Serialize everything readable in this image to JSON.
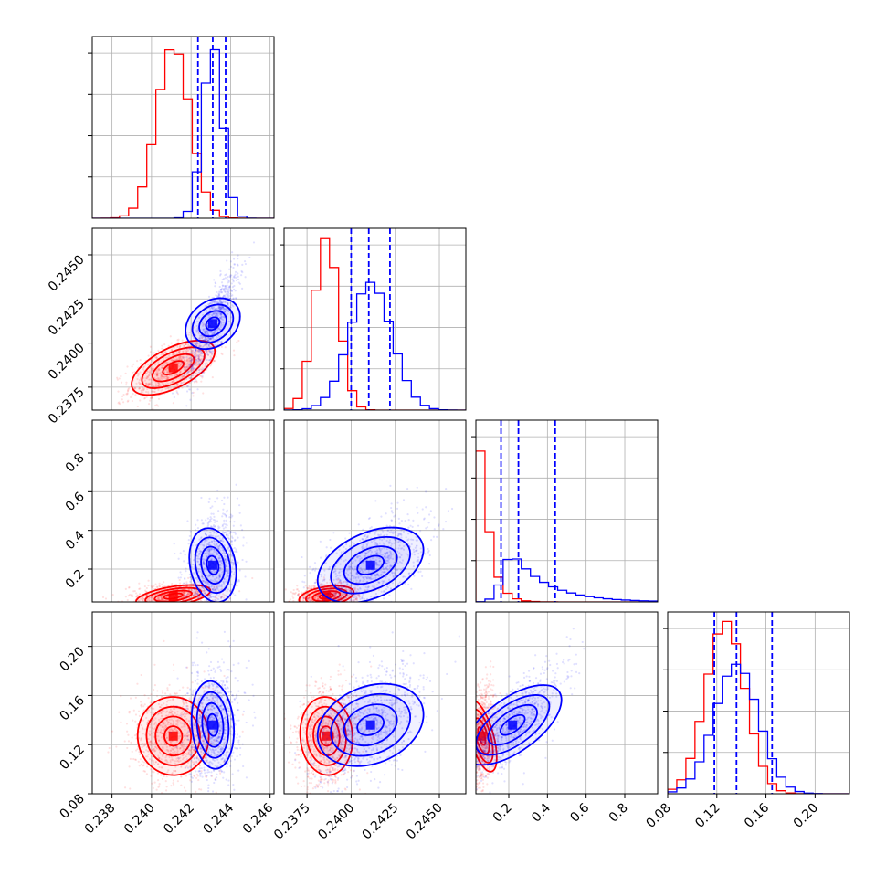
{
  "chart_data": {
    "type": "corner",
    "title": "",
    "params": [
      {
        "range": [
          0.237,
          0.2462
        ],
        "ticks": [
          0.238,
          0.24,
          0.242,
          0.244,
          0.246
        ],
        "tick_labels": [
          "0.238",
          "0.240",
          "0.242",
          "0.244",
          "0.246"
        ]
      },
      {
        "range": [
          0.2362,
          0.2465
        ],
        "ticks": [
          0.2375,
          0.24,
          0.2425,
          0.245
        ],
        "tick_labels": [
          "0.2375",
          "0.2400",
          "0.2425",
          "0.2450"
        ]
      },
      {
        "range": [
          0.03,
          0.97
        ],
        "ticks": [
          0.2,
          0.4,
          0.6,
          0.8
        ],
        "tick_labels": [
          "0.2",
          "0.4",
          "0.6",
          "0.8"
        ]
      },
      {
        "range": [
          0.08,
          0.228
        ],
        "ticks": [
          0.08,
          0.12,
          0.16,
          0.2
        ],
        "tick_labels": [
          "0.08",
          "0.12",
          "0.16",
          "0.20"
        ]
      }
    ],
    "series": [
      {
        "color": "#ff0000",
        "means": [
          0.2411,
          0.2386,
          0.06,
          0.127
        ],
        "sds": [
          0.00085,
          0.0007,
          0.025,
          0.016
        ],
        "hist_peaks": [
          1.0,
          1.0,
          1.0,
          1.0
        ],
        "quantiles": []
      },
      {
        "color": "#0000ff",
        "means": [
          0.2431,
          0.2411,
          0.22,
          0.136
        ],
        "sds": [
          0.0005,
          0.0012,
          0.1,
          0.018
        ],
        "hist_peaks": [
          1.0,
          0.74,
          0.28,
          0.75
        ],
        "quantiles": [
          [
            0.24235,
            0.2431,
            0.24375
          ],
          [
            0.24,
            0.241,
            0.2422
          ],
          [
            0.16,
            0.25,
            0.44
          ],
          [
            0.118,
            0.136,
            0.165
          ]
        ]
      }
    ],
    "correlations": {
      "red": {
        "1-0": 0.6,
        "2-0": 0.2,
        "2-1": 0.2,
        "3-0": 0.1,
        "3-1": 0.1,
        "3-2": 0.35
      },
      "blue": {
        "1-0": 0.85,
        "2-0": 0.25,
        "2-1": 0.55,
        "3-0": 0.1,
        "3-1": 0.5,
        "3-2": 0.8
      }
    },
    "grid": true
  }
}
